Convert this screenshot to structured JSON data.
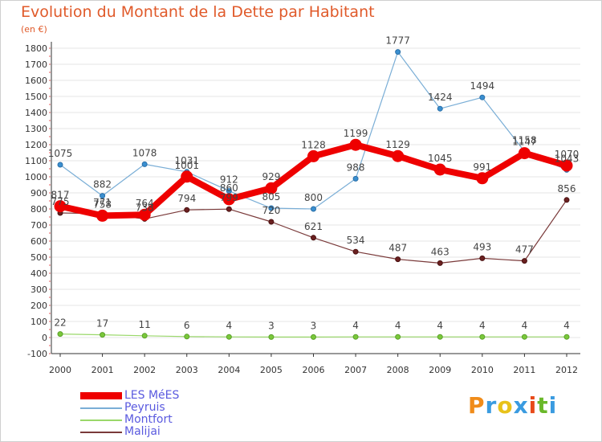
{
  "header": {
    "title": "Evolution du Montant de la Dette par Habitant",
    "subtitle": "(en €)"
  },
  "logo": {
    "text": "Proxiti",
    "colors": [
      "#f08c1a",
      "#3a9be0",
      "#e8c21a",
      "#3a9be0",
      "#e84a1a",
      "#6ab82a",
      "#3a9be0"
    ]
  },
  "chart_data": {
    "type": "line",
    "title": "Evolution du Montant de la Dette par Habitant",
    "ylabel": "(en €)",
    "xlabel": "",
    "x": [
      "2000",
      "2001",
      "2002",
      "2003",
      "2004",
      "2005",
      "2006",
      "2007",
      "2008",
      "2009",
      "2010",
      "2011",
      "2012"
    ],
    "ylim": [
      -100,
      1800
    ],
    "yticks": [
      "-100",
      "0",
      "100",
      "200",
      "300",
      "400",
      "500",
      "600",
      "700",
      "800",
      "900",
      "1000",
      "1100",
      "1200",
      "1300",
      "1400",
      "1500",
      "1600",
      "1700",
      "1800"
    ],
    "grid": "horizontal",
    "legend_position": "bottom-left",
    "series": [
      {
        "name": "LES MéES",
        "color": "#ee0000",
        "values": [
          817,
          758,
          764,
          1001,
          860,
          929,
          1128,
          1199,
          1129,
          1045,
          991,
          1147,
          1070
        ],
        "labels": [
          "817",
          "758",
          "764",
          "1001",
          "860",
          "929",
          "1128",
          "1199",
          "1129",
          "1045",
          "991",
          "1147",
          "1070"
        ]
      },
      {
        "name": "Peyruis",
        "color": "#7aaed6",
        "values": [
          1075,
          882,
          1078,
          1031,
          912,
          805,
          800,
          988,
          1777,
          1424,
          1494,
          1158,
          1043
        ],
        "labels": [
          "1075",
          "882",
          "1078",
          "1031",
          "912",
          "805",
          "800",
          "988",
          "1777",
          "1424",
          "1494",
          "1158",
          "1043"
        ]
      },
      {
        "name": "Montfort",
        "color": "#9ad86a",
        "values": [
          22,
          17,
          11,
          6,
          4,
          3,
          3,
          4,
          4,
          4,
          4,
          4,
          4
        ],
        "labels": [
          "22",
          "17",
          "11",
          "6",
          "4",
          "3",
          "3",
          "4",
          "4",
          "4",
          "4",
          "4",
          "4"
        ]
      },
      {
        "name": "Malijai",
        "color": "#7a3a3a",
        "values": [
          775,
          771,
          738,
          794,
          799,
          720,
          621,
          534,
          487,
          463,
          493,
          477,
          856
        ],
        "labels": [
          "775",
          "771",
          "738",
          "794",
          "799",
          "720",
          "621",
          "534",
          "487",
          "463",
          "493",
          "477",
          "856"
        ]
      }
    ]
  }
}
